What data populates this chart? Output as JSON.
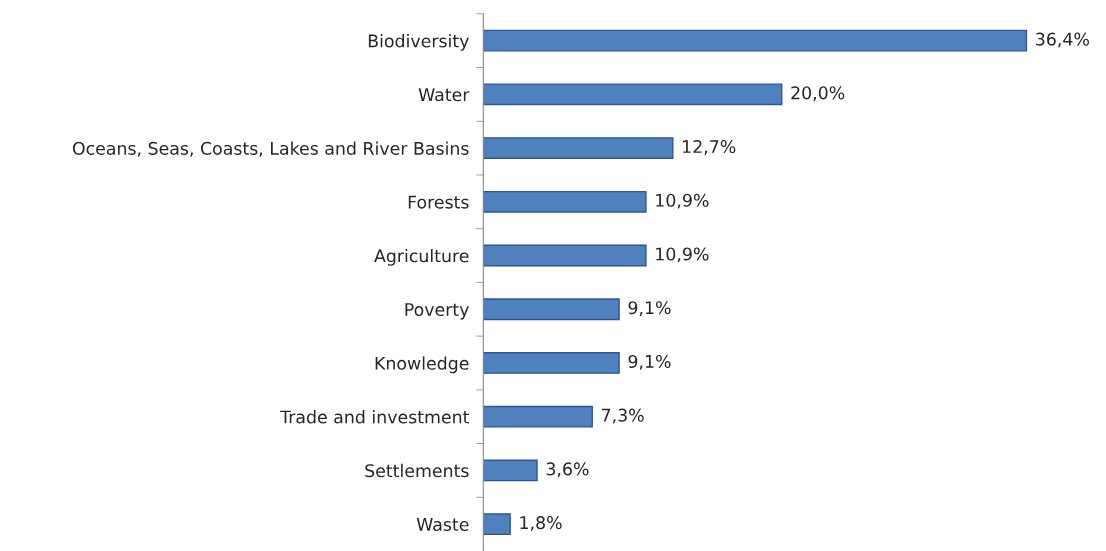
{
  "chart_data": {
    "type": "bar",
    "orientation": "horizontal",
    "categories": [
      "Biodiversity",
      "Water",
      "Oceans, Seas, Coasts, Lakes and River Basins",
      "Forests",
      "Agriculture",
      "Poverty",
      "Knowledge",
      "Trade and investment",
      "Settlements",
      "Waste"
    ],
    "values": [
      36.4,
      20.0,
      12.7,
      10.9,
      10.9,
      9.1,
      9.1,
      7.3,
      3.6,
      1.8
    ],
    "value_labels": [
      "36,4%",
      "20,0%",
      "12,7%",
      "10,9%",
      "10,9%",
      "9,1%",
      "9,1%",
      "7,3%",
      "3,6%",
      "1,8%"
    ],
    "color": "#4f81bd",
    "grid": false,
    "legend": false
  }
}
